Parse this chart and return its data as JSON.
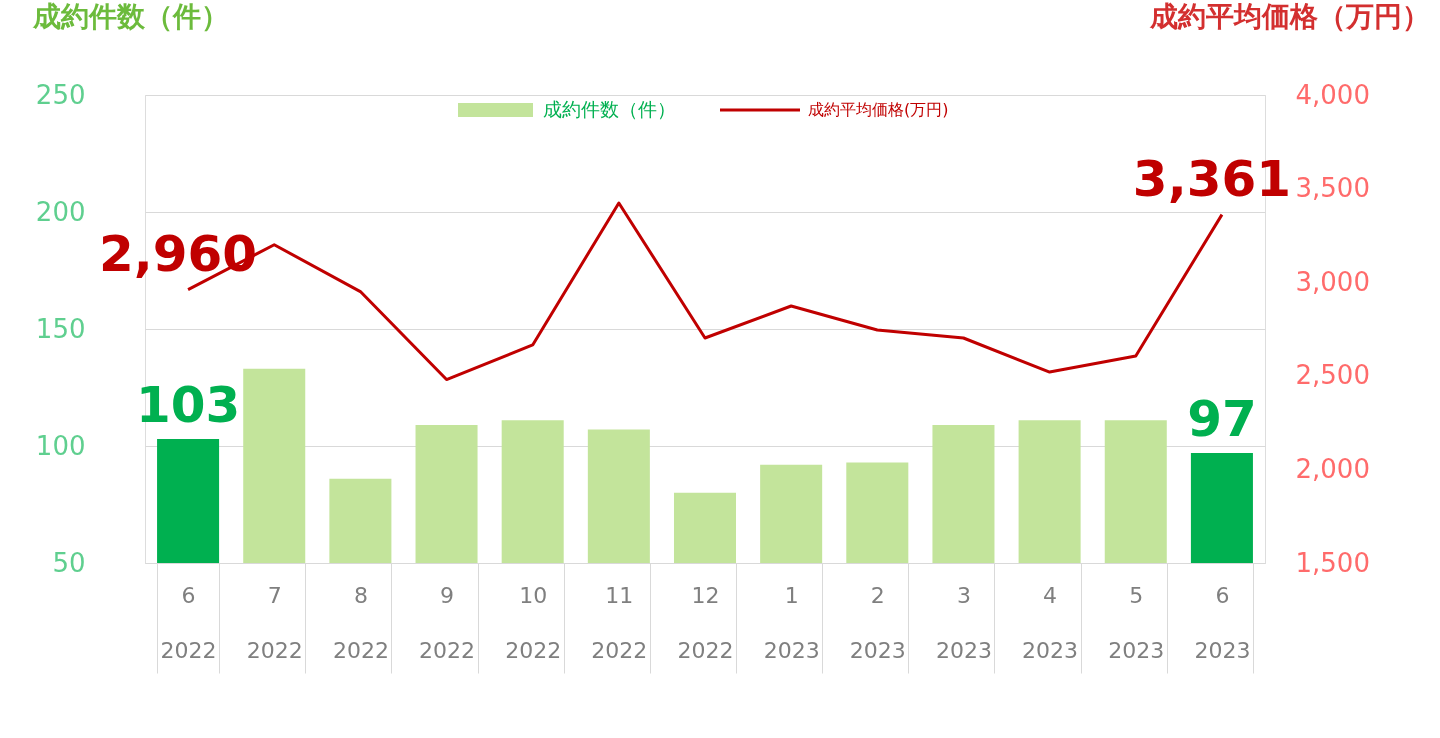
{
  "chart_data": {
    "type": "bar",
    "ylabel": "成約件数（件）",
    "y2label": "成約平均価格（万円）",
    "categories": [
      "6\n2022",
      "7\n2022",
      "8\n2022",
      "9\n2022",
      "10\n2022",
      "11\n2022",
      "12\n2022",
      "1\n2023",
      "2\n2023",
      "3\n2023",
      "4\n2023",
      "5\n2023",
      "6\n2023"
    ],
    "series": [
      {
        "name": "成約件数（件）",
        "color": "#c3e49b",
        "colors": [
          "#00b050",
          "#c3e49b",
          "#c3e49b",
          "#c3e49b",
          "#c3e49b",
          "#c3e49b",
          "#c3e49b",
          "#c3e49b",
          "#c3e49b",
          "#c3e49b",
          "#c3e49b",
          "#c3e49b",
          "#00b050"
        ],
        "values": [
          103,
          133,
          86,
          109,
          111,
          107,
          80,
          92,
          93,
          109,
          111,
          111,
          97
        ],
        "value_labels": [
          "103",
          null,
          null,
          null,
          null,
          null,
          null,
          null,
          null,
          null,
          null,
          null,
          "97"
        ]
      },
      {
        "name": "成約平均価格(万円)",
        "type": "line",
        "axis": "y2",
        "color": "#c00000",
        "values": [
          2960,
          3200,
          2950,
          2480,
          2665,
          3423,
          2702,
          2873,
          2745,
          2702,
          2520,
          2606,
          3361
        ],
        "value_labels": [
          "2,960",
          null,
          null,
          null,
          null,
          null,
          null,
          null,
          null,
          null,
          null,
          null,
          "3,361"
        ]
      }
    ],
    "ylim": [
      50,
      250
    ],
    "yticks": [
      50,
      100,
      150,
      200,
      250
    ],
    "y2lim": [
      1500,
      4000
    ],
    "y2ticks": [
      {
        "value": 1500,
        "label": "1,500"
      },
      {
        "value": 2000,
        "label": "2,000"
      },
      {
        "value": 2500,
        "label": "2,500"
      },
      {
        "value": 3000,
        "label": "3,000"
      },
      {
        "value": 3500,
        "label": "3,500"
      },
      {
        "value": 4000,
        "label": "4,000"
      }
    ],
    "grid": "y",
    "legend": "top"
  }
}
